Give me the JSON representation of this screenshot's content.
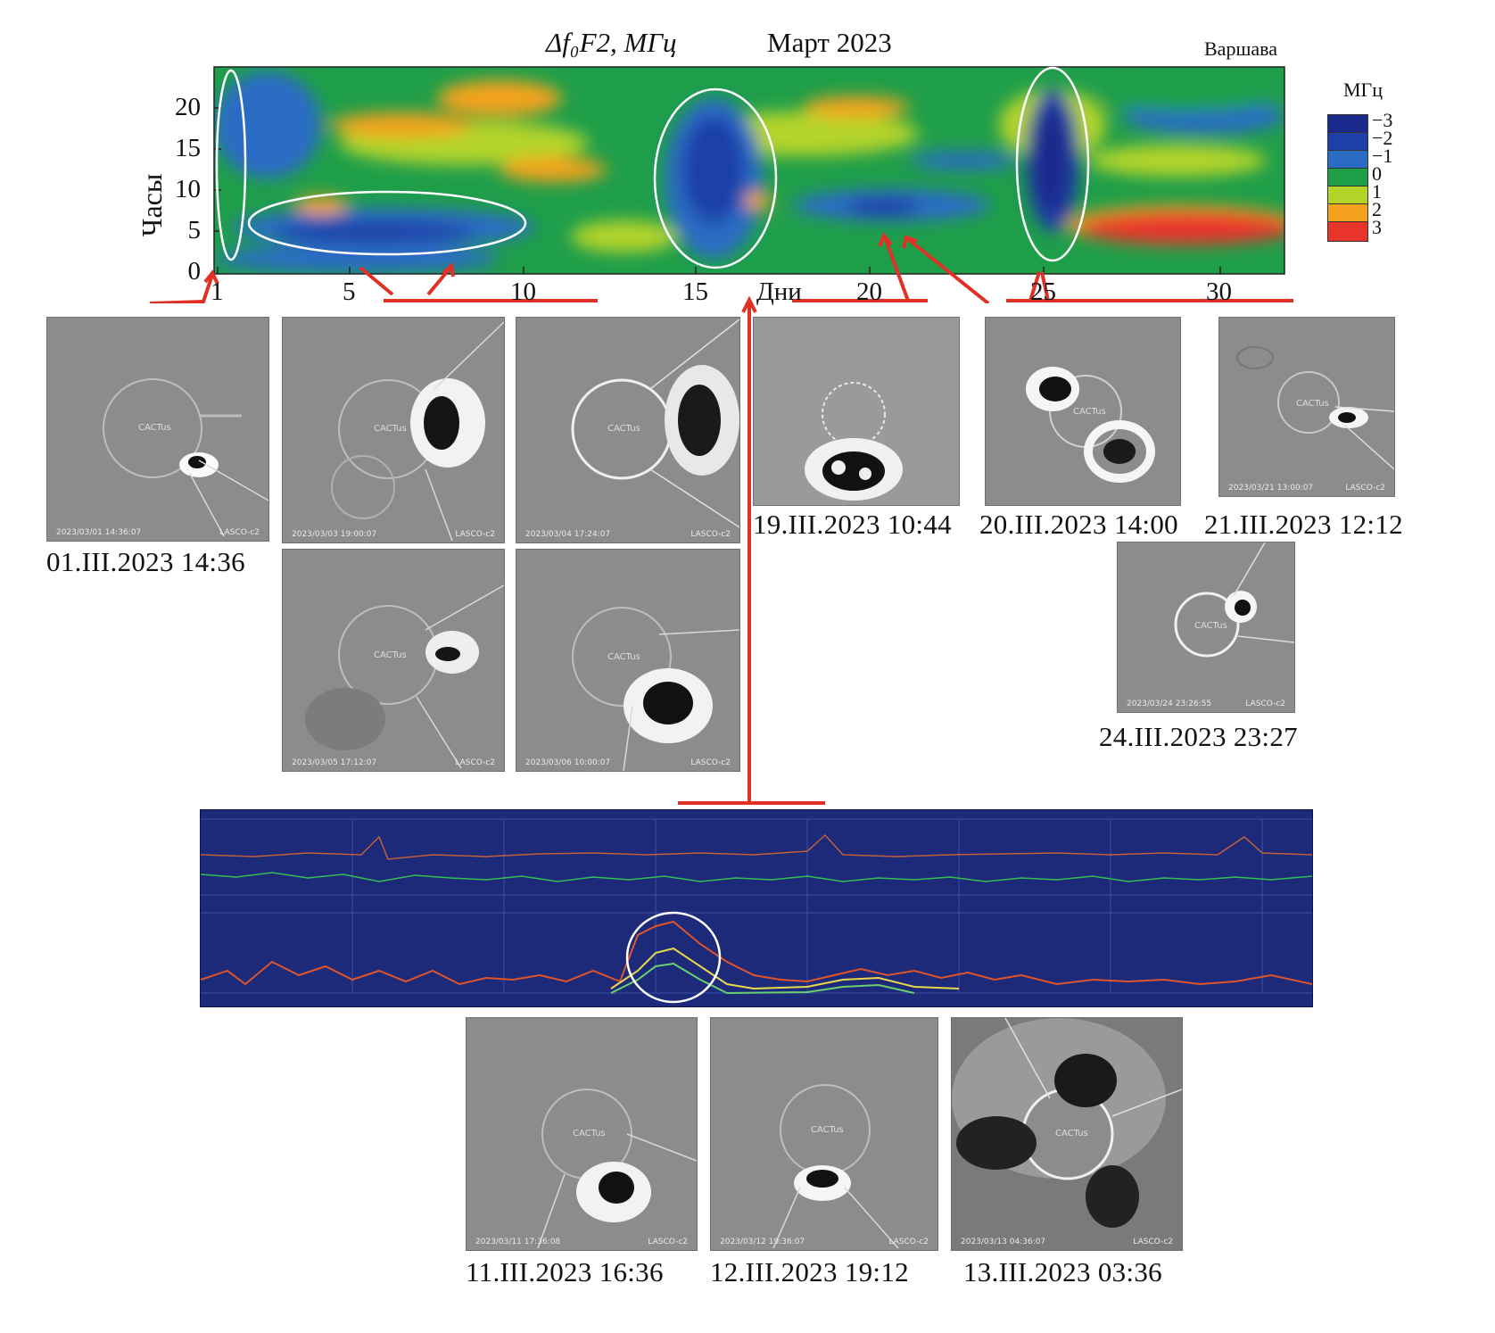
{
  "heatmap": {
    "title_quantity": "Δf₀F2, МГц",
    "title_month": "Март 2023",
    "station": "Варшава",
    "ylabel": "Часы",
    "xlabel": "Дни",
    "yticks": [
      "0",
      "5",
      "10",
      "15",
      "20"
    ],
    "xticks": [
      "1",
      "5",
      "10",
      "15",
      "20",
      "25",
      "30"
    ],
    "legend_unit": "МГц",
    "legend": [
      {
        "label": "−3",
        "color": "#1a2a8c"
      },
      {
        "label": "−2",
        "color": "#1f3fa8"
      },
      {
        "label": "−1",
        "color": "#2a6cc4"
      },
      {
        "label": "0",
        "color": "#1f9e4a"
      },
      {
        "label": "1",
        "color": "#b4d42a"
      },
      {
        "label": "2",
        "color": "#f4a21e"
      },
      {
        "label": "3",
        "color": "#e8342a"
      }
    ]
  },
  "chart_data": {
    "type": "heatmap",
    "title": "Δf₀F2, МГц   Март 2023",
    "xlabel": "Дни",
    "ylabel": "Часы",
    "xlim": [
      0.5,
      32
    ],
    "ylim": [
      0,
      24
    ],
    "colorbar_range": [
      -3,
      3
    ],
    "description_regions": [
      {
        "days": [
          1,
          1.5
        ],
        "hours": [
          0,
          24
        ],
        "value": -1
      },
      {
        "days": [
          2,
          10
        ],
        "hours": [
          2,
          9
        ],
        "value": -1.5
      },
      {
        "days": [
          15,
          16.5
        ],
        "hours": [
          2,
          18
        ],
        "value": -2.5
      },
      {
        "days": [
          24,
          25.5
        ],
        "hours": [
          5,
          22
        ],
        "value": -3
      },
      {
        "days": [
          27,
          32
        ],
        "hours": [
          2,
          8
        ],
        "value": 3
      }
    ]
  },
  "cme_panels": [
    {
      "id": "p1",
      "stamp": "2023/03/01 14:36:07",
      "instrument": "LASCO-c2",
      "caption": "01.III.2023 14:36"
    },
    {
      "id": "p2",
      "stamp": "2023/03/03 19:00:07",
      "instrument": "LASCO-c2",
      "caption": ""
    },
    {
      "id": "p3",
      "stamp": "2023/03/04 17:24:07",
      "instrument": "LASCO-c2",
      "caption": ""
    },
    {
      "id": "p4",
      "stamp": "2023/03/05 17:12:07",
      "instrument": "LASCO-c2",
      "caption": ""
    },
    {
      "id": "p5",
      "stamp": "2023/03/06 10:00:07",
      "instrument": "LASCO-c2",
      "caption": ""
    },
    {
      "id": "p6",
      "stamp": "",
      "instrument": "",
      "caption": "19.III.2023 10:44"
    },
    {
      "id": "p7",
      "stamp": "",
      "instrument": "",
      "caption": "20.III.2023 14:00"
    },
    {
      "id": "p8",
      "stamp": "2023/03/21 13:00:07",
      "instrument": "LASCO-c2",
      "caption": "21.III.2023 12:12"
    },
    {
      "id": "p9",
      "stamp": "2023/03/24 23:26:55",
      "instrument": "LASCO-c2",
      "caption": "24.III.2023 23:27"
    },
    {
      "id": "p10",
      "stamp": "2023/03/11 17:36:08",
      "instrument": "LASCO-c2",
      "caption": "11.III.2023 16:36"
    },
    {
      "id": "p11",
      "stamp": "2023/03/12 19:36:07",
      "instrument": "LASCO-c2",
      "caption": "12.III.2023 19:12"
    },
    {
      "id": "p12",
      "stamp": "2023/03/13 04:36:07",
      "instrument": "LASCO-c2",
      "caption": "13.III.2023 03:36"
    }
  ],
  "cactus_label": "CACTus",
  "colors": {
    "arrow": "#e03127",
    "ellipse": "#ffffff",
    "panel_bg": "#1d2a7a"
  }
}
